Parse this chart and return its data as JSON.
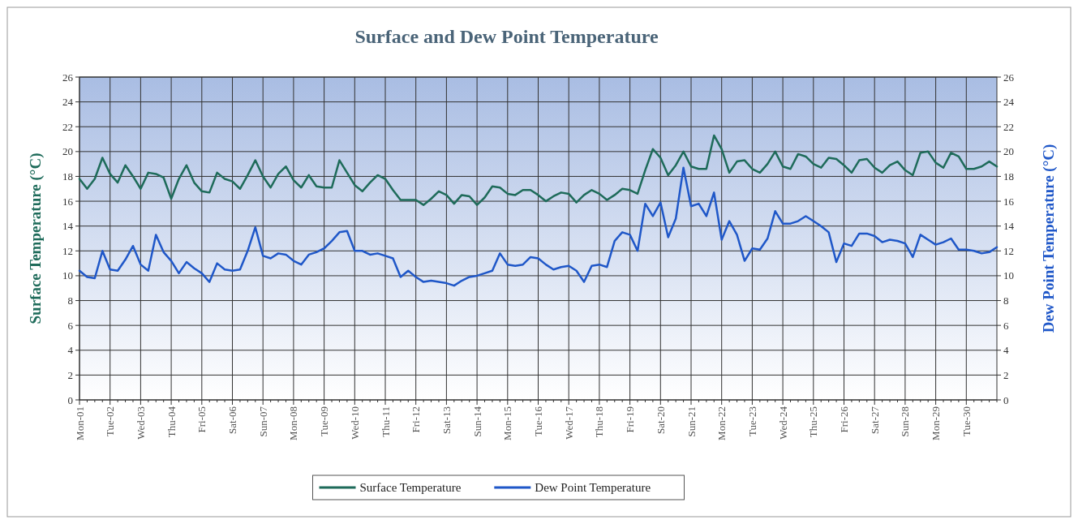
{
  "chart_data": {
    "type": "line",
    "title": "Surface and Dew Point Temperature",
    "ylabel": "Surface Temperature (°C)",
    "y2label": "Dew Point Temperature (°C)",
    "categories": [
      "Mon-01",
      null,
      null,
      null,
      "Tue-02",
      null,
      null,
      null,
      "Wed-03",
      null,
      null,
      null,
      "Thu-04",
      null,
      null,
      null,
      "Fri-05",
      null,
      null,
      null,
      "Sat-06",
      null,
      null,
      null,
      "Sun-07",
      null,
      null,
      null,
      "Mon-08",
      null,
      null,
      null,
      "Tue-09",
      null,
      null,
      null,
      "Wed-10",
      null,
      null,
      null,
      "Thu-11",
      null,
      null,
      null,
      "Fri-12",
      null,
      null,
      null,
      "Sat-13",
      null,
      null,
      null,
      "Sun-14",
      null,
      null,
      null,
      "Mon-15",
      null,
      null,
      null,
      "Tue-16",
      null,
      null,
      null,
      "Wed-17",
      null,
      null,
      null,
      "Thu-18",
      null,
      null,
      null,
      "Fri-19",
      null,
      null,
      null,
      "Sat-20",
      null,
      null,
      null,
      "Sun-21",
      null,
      null,
      null,
      "Mon-22",
      null,
      null,
      null,
      "Tue-23",
      null,
      null,
      null,
      "Wed-24",
      null,
      null,
      null,
      "Thu-25",
      null,
      null,
      null,
      "Fri-26",
      null,
      null,
      null,
      "Sat-27",
      null,
      null,
      null,
      "Sun-28",
      null,
      null,
      null,
      "Mon-29",
      null,
      null,
      null,
      "Tue-30",
      null,
      null,
      null,
      null
    ],
    "ylim": [
      0,
      26
    ],
    "yticks": [
      0,
      2,
      4,
      6,
      8,
      10,
      12,
      14,
      16,
      18,
      20,
      22,
      24,
      26
    ],
    "y2lim": [
      0,
      26
    ],
    "y2ticks": [
      0,
      2,
      4,
      6,
      8,
      10,
      12,
      14,
      16,
      18,
      20,
      22,
      24,
      26
    ],
    "grid": true,
    "legend": "bottom",
    "line_style": "solid",
    "marker": "none",
    "series": [
      {
        "name": "Surface Temperature",
        "color": "#1e6b5a",
        "values": [
          17.8,
          17.0,
          17.8,
          19.5,
          18.2,
          17.5,
          18.9,
          18.0,
          17.0,
          18.3,
          18.2,
          17.9,
          16.2,
          17.8,
          18.9,
          17.5,
          16.8,
          16.7,
          18.3,
          17.8,
          17.6,
          17.0,
          18.1,
          19.3,
          18.0,
          17.1,
          18.2,
          18.8,
          17.7,
          17.1,
          18.1,
          17.2,
          17.1,
          17.1,
          19.3,
          18.3,
          17.3,
          16.8,
          17.5,
          18.1,
          17.8,
          16.9,
          16.1,
          16.1,
          16.1,
          15.7,
          16.2,
          16.8,
          16.5,
          15.8,
          16.5,
          16.4,
          15.7,
          16.3,
          17.2,
          17.1,
          16.6,
          16.5,
          16.9,
          16.9,
          16.5,
          16.0,
          16.4,
          16.7,
          16.6,
          15.9,
          16.5,
          16.9,
          16.6,
          16.1,
          16.5,
          17.0,
          16.9,
          16.6,
          18.5,
          20.2,
          19.5,
          18.1,
          18.9,
          20.0,
          18.8,
          18.6,
          18.6,
          21.3,
          20.2,
          18.3,
          19.2,
          19.3,
          18.6,
          18.3,
          19.0,
          20.0,
          18.8,
          18.6,
          19.8,
          19.6,
          19.0,
          18.7,
          19.5,
          19.4,
          18.9,
          18.3,
          19.3,
          19.4,
          18.7,
          18.3,
          18.9,
          19.2,
          18.5,
          18.1,
          19.9,
          20.0,
          19.1,
          18.7,
          19.9,
          19.6,
          18.6,
          18.6,
          18.8,
          19.2,
          18.8
        ]
      },
      {
        "name": "Dew Point Temperature",
        "color": "#1f57c8",
        "axis": "y2",
        "values": [
          10.4,
          9.9,
          9.8,
          12.0,
          10.5,
          10.4,
          11.3,
          12.4,
          10.9,
          10.4,
          13.3,
          11.9,
          11.2,
          10.2,
          11.1,
          10.6,
          10.2,
          9.5,
          11.0,
          10.5,
          10.4,
          10.5,
          12.0,
          13.9,
          11.6,
          11.4,
          11.8,
          11.7,
          11.2,
          10.9,
          11.7,
          11.9,
          12.2,
          12.8,
          13.5,
          13.6,
          12.0,
          12.0,
          11.7,
          11.8,
          11.6,
          11.4,
          9.9,
          10.4,
          9.9,
          9.5,
          9.6,
          9.5,
          9.4,
          9.2,
          9.6,
          9.9,
          10.0,
          10.2,
          10.4,
          11.8,
          10.9,
          10.8,
          10.9,
          11.5,
          11.4,
          10.9,
          10.5,
          10.7,
          10.8,
          10.4,
          9.5,
          10.8,
          10.9,
          10.7,
          12.8,
          13.5,
          13.3,
          12.0,
          15.8,
          14.8,
          15.9,
          13.1,
          14.6,
          18.7,
          15.6,
          15.8,
          14.8,
          16.7,
          12.9,
          14.4,
          13.3,
          11.2,
          12.2,
          12.1,
          13.0,
          15.2,
          14.2,
          14.2,
          14.4,
          14.8,
          14.4,
          14.0,
          13.5,
          11.1,
          12.6,
          12.4,
          13.4,
          13.4,
          13.2,
          12.7,
          12.9,
          12.8,
          12.6,
          11.5,
          13.3,
          12.9,
          12.5,
          12.7,
          13.0,
          12.1,
          12.1,
          12.0,
          11.8,
          11.9,
          12.3
        ]
      }
    ]
  }
}
